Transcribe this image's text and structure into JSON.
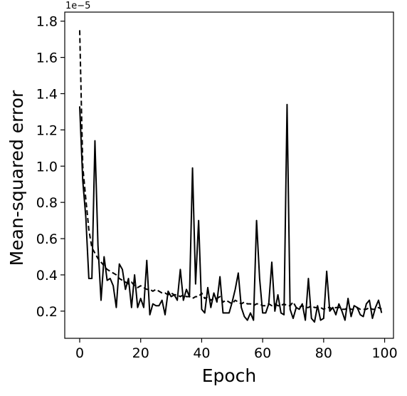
{
  "chart_data": {
    "type": "line",
    "title": "",
    "xlabel": "Epoch",
    "ylabel": "Mean-squared error",
    "y_offset_label": "1e−5",
    "xlim": [
      -4.9,
      102.9
    ],
    "ylim": [
      0.05,
      1.85
    ],
    "x_ticks": [
      0,
      20,
      40,
      60,
      80,
      100
    ],
    "y_ticks": [
      0.2,
      0.4,
      0.6,
      0.8,
      1.0,
      1.2,
      1.4,
      1.6,
      1.8
    ],
    "y_tick_labels": [
      "0.2",
      "0.4",
      "0.6",
      "0.8",
      "1.0",
      "1.2",
      "1.4",
      "1.6",
      "1.8"
    ],
    "grid": false,
    "legend": "none",
    "line_color": "#000000",
    "series": [
      {
        "style": "solid",
        "x": [
          0,
          1,
          2,
          3,
          4,
          5,
          6,
          7,
          8,
          9,
          10,
          11,
          12,
          13,
          14,
          15,
          16,
          17,
          18,
          19,
          20,
          21,
          22,
          23,
          24,
          25,
          26,
          27,
          28,
          29,
          30,
          31,
          32,
          33,
          34,
          35,
          36,
          37,
          38,
          39,
          40,
          41,
          42,
          43,
          44,
          45,
          46,
          47,
          48,
          49,
          50,
          51,
          52,
          53,
          54,
          55,
          56,
          57,
          58,
          59,
          60,
          61,
          62,
          63,
          64,
          65,
          66,
          67,
          68,
          69,
          70,
          71,
          72,
          73,
          74,
          75,
          76,
          77,
          78,
          79,
          80,
          81,
          82,
          83,
          84,
          85,
          86,
          87,
          88,
          89,
          90,
          91,
          92,
          93,
          94,
          95,
          96,
          97,
          98,
          99
        ],
        "values": [
          1.33,
          0.92,
          0.72,
          0.38,
          0.38,
          1.14,
          0.56,
          0.26,
          0.5,
          0.37,
          0.38,
          0.34,
          0.22,
          0.46,
          0.43,
          0.32,
          0.38,
          0.22,
          0.4,
          0.22,
          0.27,
          0.22,
          0.48,
          0.18,
          0.24,
          0.23,
          0.23,
          0.26,
          0.18,
          0.31,
          0.28,
          0.29,
          0.26,
          0.43,
          0.26,
          0.32,
          0.28,
          0.99,
          0.35,
          0.7,
          0.21,
          0.19,
          0.33,
          0.22,
          0.3,
          0.25,
          0.39,
          0.19,
          0.19,
          0.19,
          0.25,
          0.32,
          0.41,
          0.22,
          0.17,
          0.15,
          0.19,
          0.15,
          0.7,
          0.38,
          0.19,
          0.19,
          0.24,
          0.47,
          0.2,
          0.29,
          0.19,
          0.18,
          1.34,
          0.21,
          0.16,
          0.22,
          0.21,
          0.24,
          0.15,
          0.38,
          0.16,
          0.14,
          0.23,
          0.15,
          0.16,
          0.42,
          0.2,
          0.22,
          0.18,
          0.24,
          0.2,
          0.15,
          0.27,
          0.17,
          0.23,
          0.22,
          0.18,
          0.17,
          0.24,
          0.26,
          0.16,
          0.22,
          0.26,
          0.19
        ],
        "x_end": 99
      },
      {
        "style": "dashed",
        "x": [
          0,
          1,
          2,
          3,
          4,
          5,
          6,
          7,
          8,
          9,
          10,
          11,
          12,
          13,
          14,
          15,
          16,
          17,
          18,
          19,
          20,
          21,
          22,
          23,
          24,
          25,
          26,
          27,
          28,
          29,
          30,
          31,
          32,
          33,
          34,
          35,
          36,
          37,
          38,
          39,
          40,
          41,
          42,
          43,
          44,
          45,
          46,
          47,
          48,
          49,
          50,
          51,
          52,
          53,
          54,
          55,
          56,
          57,
          58,
          59,
          60,
          61,
          62,
          63,
          64,
          65,
          66,
          67,
          68,
          69,
          70,
          71,
          72,
          73,
          74,
          75,
          76,
          77,
          78,
          79,
          80,
          81,
          82,
          83,
          84,
          85,
          86,
          87,
          88,
          89,
          90,
          91,
          92,
          93,
          94,
          95,
          96,
          97,
          98,
          99
        ],
        "values": [
          1.75,
          1.0,
          0.82,
          0.65,
          0.55,
          0.52,
          0.49,
          0.47,
          0.45,
          0.43,
          0.42,
          0.41,
          0.4,
          0.38,
          0.37,
          0.36,
          0.35,
          0.36,
          0.34,
          0.33,
          0.34,
          0.33,
          0.32,
          0.32,
          0.31,
          0.32,
          0.31,
          0.3,
          0.3,
          0.29,
          0.3,
          0.29,
          0.29,
          0.28,
          0.29,
          0.28,
          0.28,
          0.27,
          0.28,
          0.28,
          0.3,
          0.27,
          0.28,
          0.26,
          0.27,
          0.27,
          0.28,
          0.25,
          0.26,
          0.25,
          0.24,
          0.26,
          0.25,
          0.24,
          0.25,
          0.24,
          0.24,
          0.23,
          0.24,
          0.24,
          0.23,
          0.23,
          0.24,
          0.23,
          0.24,
          0.23,
          0.23,
          0.24,
          0.23,
          0.23,
          0.25,
          0.22,
          0.22,
          0.23,
          0.22,
          0.22,
          0.23,
          0.22,
          0.22,
          0.22,
          0.21,
          0.22,
          0.22,
          0.21,
          0.22,
          0.22,
          0.21,
          0.21,
          0.22,
          0.21,
          0.21,
          0.22,
          0.21,
          0.21,
          0.21,
          0.22,
          0.21,
          0.21,
          0.22,
          0.21
        ]
      }
    ]
  }
}
